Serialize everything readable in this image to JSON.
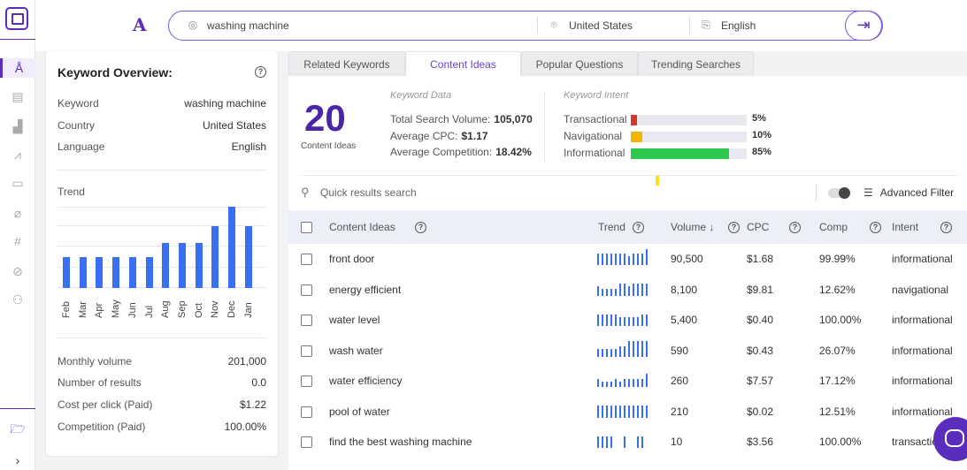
{
  "search": {
    "keyword": "washing machine",
    "country": "United States",
    "language": "English"
  },
  "overview": {
    "title": "Keyword Overview:",
    "rows": [
      {
        "label": "Keyword",
        "value": "washing machine"
      },
      {
        "label": "Country",
        "value": "United States"
      },
      {
        "label": "Language",
        "value": "English"
      }
    ],
    "trend_label": "Trend",
    "stats": [
      {
        "label": "Monthly volume",
        "value": "201,000"
      },
      {
        "label": "Number of results",
        "value": "0.0"
      },
      {
        "label": "Cost per click (Paid)",
        "value": "$1.22"
      },
      {
        "label": "Competition (Paid)",
        "value": "100.00%"
      }
    ]
  },
  "chart_data": {
    "type": "bar",
    "categories": [
      "Feb",
      "Mar",
      "Apr",
      "May",
      "Jun",
      "Jul",
      "Aug",
      "Sep",
      "Oct",
      "Nov",
      "Dec",
      "Jan"
    ],
    "values": [
      36,
      36,
      36,
      36,
      36,
      36,
      52,
      52,
      52,
      71,
      94,
      71
    ],
    "ylim": [
      0,
      100
    ],
    "grid": true
  },
  "tabs": [
    "Related Keywords",
    "Content Ideas",
    "Popular Questions",
    "Trending Searches"
  ],
  "active_tab": 1,
  "summary": {
    "count": "20",
    "count_label": "Content Ideas",
    "keyword_data_heading": "Keyword Data",
    "total_volume_label": "Total Search Volume:",
    "total_volume": "105,070",
    "avg_cpc_label": "Average CPC:",
    "avg_cpc": "$1.17",
    "avg_comp_label": "Average Competition:",
    "avg_comp": "18.42%",
    "intent_heading": "Keyword Intent",
    "intents": [
      {
        "label": "Transactional",
        "pct": "5%",
        "value": 5,
        "color": "#d9362b"
      },
      {
        "label": "Navigational",
        "pct": "10%",
        "value": 10,
        "color": "#f5b400"
      },
      {
        "label": "Informational",
        "pct": "85%",
        "value": 85,
        "color": "#2dc84d"
      }
    ]
  },
  "toolbar": {
    "search_placeholder": "Quick results search",
    "advanced_filter": "Advanced Filter"
  },
  "table": {
    "headers": {
      "idea": "Content Ideas",
      "trend": "Trend",
      "volume": "Volume",
      "cpc": "CPC",
      "comp": "Comp",
      "intent": "Intent"
    },
    "rows": [
      {
        "idea": "front door",
        "volume": "90,500",
        "cpc": "$1.68",
        "comp": "99.99%",
        "intent": "informational",
        "trend": [
          9,
          9,
          9,
          9,
          9,
          9,
          9,
          7,
          9,
          9,
          9,
          12
        ]
      },
      {
        "idea": "energy efficient",
        "volume": "8,100",
        "cpc": "$9.81",
        "comp": "12.62%",
        "intent": "navigational",
        "trend": [
          7,
          5,
          5,
          5,
          5,
          9,
          9,
          7,
          9,
          9,
          9,
          9
        ]
      },
      {
        "idea": "water level",
        "volume": "5,400",
        "cpc": "$0.40",
        "comp": "100.00%",
        "intent": "informational",
        "trend": [
          9,
          9,
          9,
          9,
          9,
          7,
          7,
          7,
          7,
          7,
          9,
          9
        ]
      },
      {
        "idea": "wash water",
        "volume": "590",
        "cpc": "$0.43",
        "comp": "26.07%",
        "intent": "informational",
        "trend": [
          6,
          6,
          6,
          6,
          6,
          8,
          8,
          12,
          12,
          12,
          12,
          12
        ]
      },
      {
        "idea": "water efficiency",
        "volume": "260",
        "cpc": "$7.57",
        "comp": "17.12%",
        "intent": "informational",
        "trend": [
          6,
          4,
          4,
          4,
          6,
          4,
          6,
          6,
          6,
          6,
          6,
          10
        ]
      },
      {
        "idea": "pool of water",
        "volume": "210",
        "cpc": "$0.02",
        "comp": "12.51%",
        "intent": "informational",
        "trend": [
          9,
          9,
          9,
          9,
          9,
          9,
          9,
          9,
          9,
          9,
          9,
          9
        ]
      },
      {
        "idea": "find the best washing machine",
        "volume": "10",
        "cpc": "$3.56",
        "comp": "100.00%",
        "intent": "transactional",
        "trend": [
          9,
          9,
          9,
          9,
          0,
          0,
          9,
          0,
          0,
          9,
          9,
          0
        ]
      }
    ]
  }
}
